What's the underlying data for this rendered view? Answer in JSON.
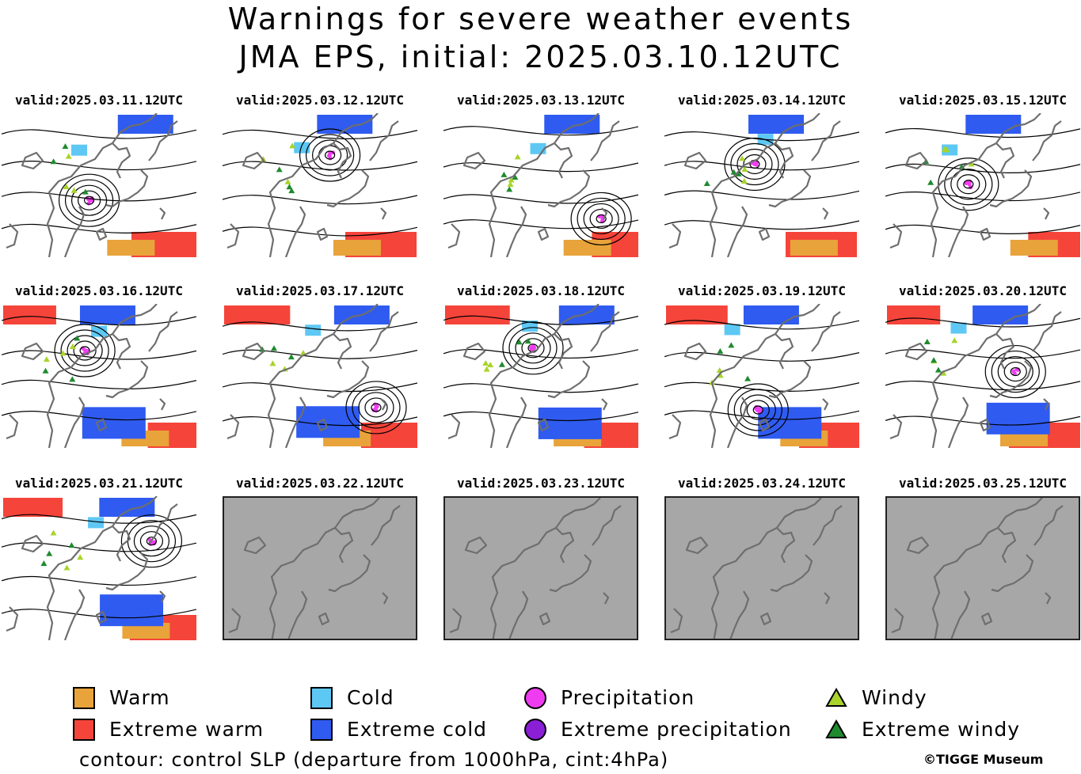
{
  "title": "Warnings for severe weather events",
  "subtitle": "JMA EPS, initial: 2025.03.10.12UTC",
  "panels": [
    {
      "label": "valid:2025.03.11.12UTC",
      "has_data": true
    },
    {
      "label": "valid:2025.03.12.12UTC",
      "has_data": true
    },
    {
      "label": "valid:2025.03.13.12UTC",
      "has_data": true
    },
    {
      "label": "valid:2025.03.14.12UTC",
      "has_data": true
    },
    {
      "label": "valid:2025.03.15.12UTC",
      "has_data": true
    },
    {
      "label": "valid:2025.03.16.12UTC",
      "has_data": true
    },
    {
      "label": "valid:2025.03.17.12UTC",
      "has_data": true
    },
    {
      "label": "valid:2025.03.18.12UTC",
      "has_data": true
    },
    {
      "label": "valid:2025.03.19.12UTC",
      "has_data": true
    },
    {
      "label": "valid:2025.03.20.12UTC",
      "has_data": true
    },
    {
      "label": "valid:2025.03.21.12UTC",
      "has_data": true
    },
    {
      "label": "valid:2025.03.22.12UTC",
      "has_data": false
    },
    {
      "label": "valid:2025.03.23.12UTC",
      "has_data": false
    },
    {
      "label": "valid:2025.03.24.12UTC",
      "has_data": false
    },
    {
      "label": "valid:2025.03.25.12UTC",
      "has_data": false
    }
  ],
  "legend": [
    {
      "label": "Warm",
      "shape": "square",
      "color": "#e8a33a"
    },
    {
      "label": "Extreme warm",
      "shape": "square",
      "color": "#f5443a"
    },
    {
      "label": "Cold",
      "shape": "square",
      "color": "#5ec8f5"
    },
    {
      "label": "Extreme cold",
      "shape": "square",
      "color": "#2f5bf0"
    },
    {
      "label": "Precipitation",
      "shape": "circle",
      "color": "#f03cf0"
    },
    {
      "label": "Extreme precipitation",
      "shape": "circle",
      "color": "#8a1fd6"
    },
    {
      "label": "Windy",
      "shape": "triangle",
      "color": "#a8d42a"
    },
    {
      "label": "Extreme windy",
      "shape": "triangle",
      "color": "#1f8a2e"
    }
  ],
  "footer": "contour: control SLP (departure from 1000hPa, cint:4hPa)",
  "copyright": "©TIGGE Museum",
  "colors": {
    "no_data": "#a7a7a7",
    "coastline": "#6e6e6e",
    "contour": "#000000"
  }
}
